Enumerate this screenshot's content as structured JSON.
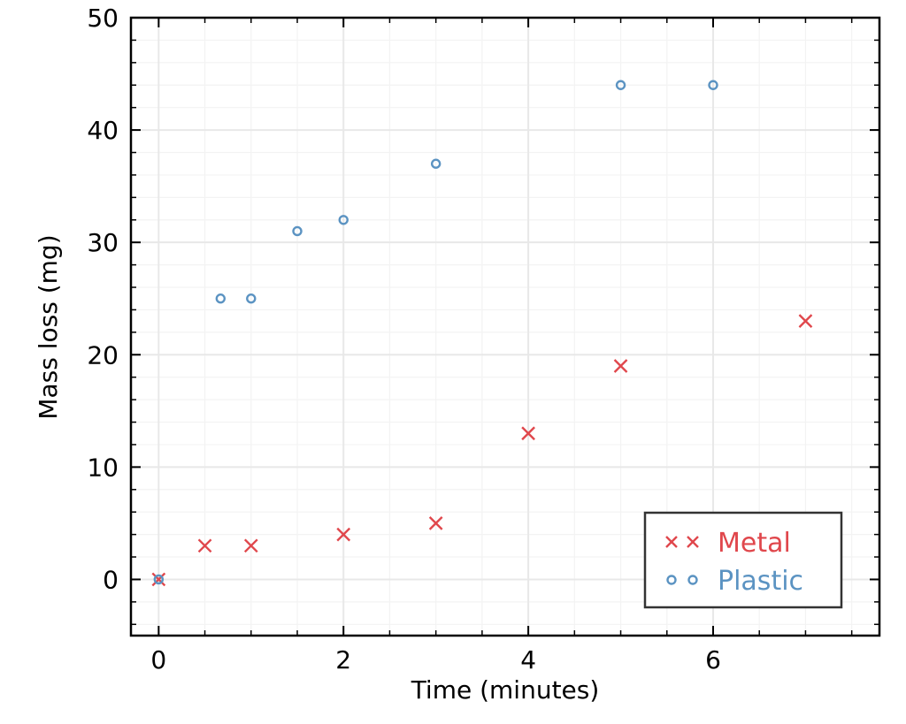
{
  "chart_data": {
    "type": "scatter",
    "title": "",
    "xlabel": "Time (minutes)",
    "ylabel": "Mass loss (mg)",
    "xlim": [
      -0.3,
      7.8
    ],
    "ylim": [
      -5,
      50
    ],
    "xticks": [
      0,
      2,
      4,
      6
    ],
    "yticks": [
      0,
      10,
      20,
      30,
      40,
      50
    ],
    "x_minor_step": 0.5,
    "y_minor_step": 2,
    "grid": true,
    "legend_position": "bottom-right",
    "series": [
      {
        "name": "Metal",
        "marker": "x",
        "color": "#e0474c",
        "x": [
          0,
          0.5,
          1,
          2,
          3,
          4,
          5,
          7
        ],
        "y": [
          0,
          3,
          3,
          4,
          5,
          13,
          19,
          23
        ]
      },
      {
        "name": "Plastic",
        "marker": "circle",
        "color": "#5b93c2",
        "x": [
          0,
          0.67,
          1,
          1.5,
          2,
          3,
          5,
          6
        ],
        "y": [
          0,
          25,
          25,
          31,
          32,
          37,
          44,
          44
        ]
      }
    ]
  }
}
